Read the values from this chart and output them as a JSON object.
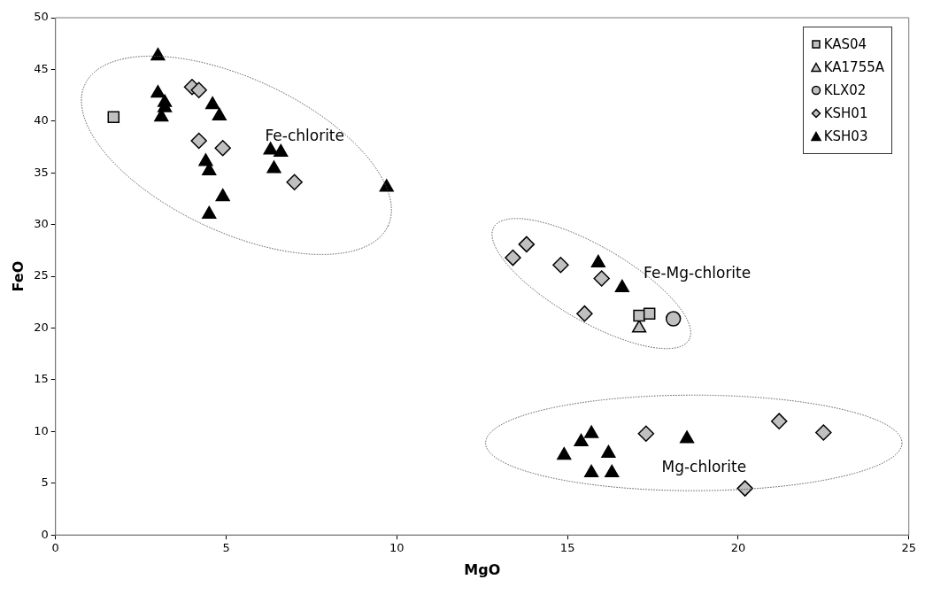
{
  "chart_data": {
    "type": "scatter",
    "xlabel": "MgO",
    "ylabel": "FeO",
    "xlim": [
      0,
      25
    ],
    "xticks": [
      0,
      5,
      10,
      15,
      20,
      25
    ],
    "ylim": [
      0,
      50
    ],
    "yticks": [
      0,
      5,
      10,
      15,
      20,
      25,
      30,
      35,
      40,
      45,
      50
    ],
    "grid": false,
    "legend": "top right",
    "series": [
      {
        "name": "KAS04",
        "color": "#c0c0c0",
        "marker": "square",
        "x": [
          1.7,
          17.1,
          17.4
        ],
        "values": [
          40.4,
          21.2,
          21.4
        ]
      },
      {
        "name": "KA1755A",
        "color": "#c0c0c0",
        "marker": "triangle",
        "x": [
          17.1
        ],
        "values": [
          20.0
        ]
      },
      {
        "name": "KLX02",
        "color": "#c0c0c0",
        "marker": "circle",
        "x": [
          18.1
        ],
        "values": [
          20.9
        ]
      },
      {
        "name": "KSH01",
        "color": "#c0c0c0",
        "marker": "diamond",
        "x": [
          4.0,
          4.2,
          4.2,
          4.9,
          7.0,
          13.4,
          13.8,
          14.8,
          16.0,
          15.5,
          17.3,
          20.2,
          21.2,
          22.5
        ],
        "values": [
          43.3,
          43.0,
          38.1,
          37.4,
          34.1,
          26.8,
          28.1,
          26.1,
          24.8,
          21.4,
          9.8,
          4.5,
          11.0,
          9.9
        ]
      },
      {
        "name": "KSH03",
        "color": "#000000",
        "marker": "triangle",
        "x": [
          3.0,
          3.0,
          3.2,
          3.2,
          3.1,
          4.6,
          4.8,
          4.4,
          4.5,
          4.9,
          4.5,
          6.3,
          6.6,
          6.4,
          9.7,
          15.9,
          16.6,
          14.9,
          15.4,
          15.7,
          15.7,
          16.2,
          16.3,
          18.5
        ],
        "values": [
          46.3,
          42.7,
          41.8,
          41.3,
          40.4,
          41.6,
          40.5,
          36.1,
          35.2,
          32.7,
          31.0,
          37.2,
          37.0,
          35.4,
          33.6,
          26.3,
          23.9,
          7.7,
          9.0,
          9.8,
          6.0,
          7.9,
          6.0,
          9.3
        ]
      }
    ],
    "annotations": [
      "Fe-chlorite",
      "Fe-Mg-chlorite",
      "Mg-chlorite"
    ]
  }
}
